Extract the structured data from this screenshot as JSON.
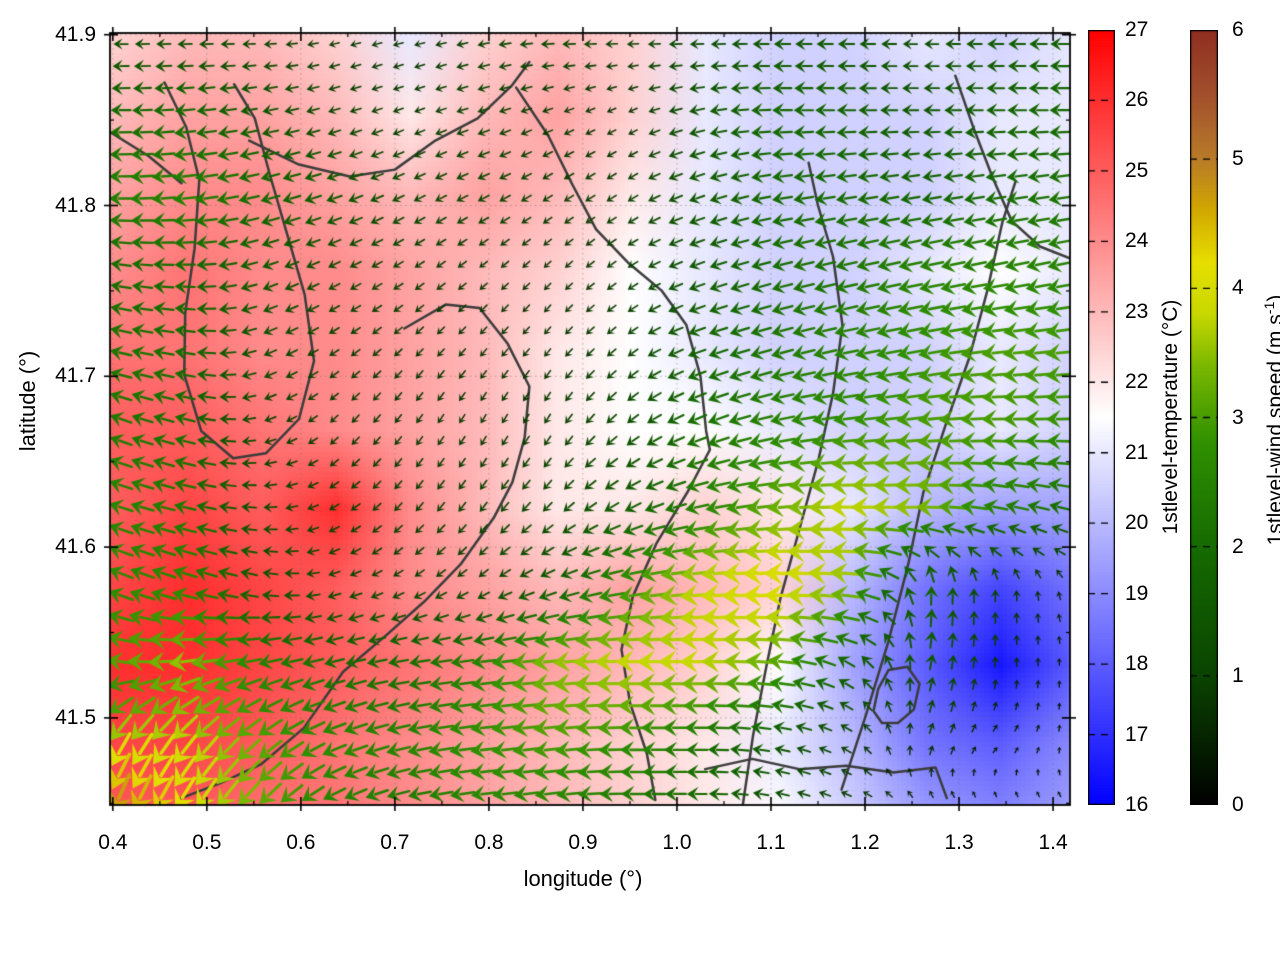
{
  "figure": {
    "background": "#ffffff"
  },
  "chart_data": {
    "type": "heatmap",
    "title": "",
    "xlabel": "longitude (°)",
    "ylabel": "latitude (°)",
    "xlim": [
      0.397,
      1.418
    ],
    "ylim": [
      41.449,
      41.901
    ],
    "xticks": [
      "0.4",
      "0.5",
      "0.6",
      "0.7",
      "0.8",
      "0.9",
      "1.0",
      "1.1",
      "1.2",
      "1.3",
      "1.4"
    ],
    "yticks": [
      "41.5",
      "41.6",
      "41.7",
      "41.8",
      "41.9"
    ],
    "grid_on": true,
    "grid": {
      "lon": [
        0.4,
        0.478,
        0.557,
        0.635,
        0.714,
        0.792,
        0.871,
        0.949,
        1.028,
        1.106,
        1.185,
        1.263,
        1.342,
        1.42
      ],
      "lat": [
        41.9,
        41.854,
        41.808,
        41.762,
        41.716,
        41.67,
        41.624,
        41.578,
        41.532,
        41.486,
        41.44
      ]
    },
    "temperature": [
      [
        22.5,
        23,
        23,
        22.5,
        21,
        22.5,
        23,
        22.5,
        21,
        20.5,
        20.5,
        21,
        20.5,
        21
      ],
      [
        23,
        23.5,
        23.5,
        23,
        22,
        23,
        23.5,
        22.5,
        21,
        20.5,
        20.5,
        20.5,
        21,
        21
      ],
      [
        23.5,
        24,
        24,
        23.5,
        23,
        23.5,
        23,
        22,
        21,
        20.5,
        20.5,
        20.5,
        21,
        21
      ],
      [
        24,
        24.5,
        24,
        24,
        23.5,
        23,
        22.5,
        21.5,
        21,
        20.5,
        20.5,
        21,
        21.5,
        21
      ],
      [
        24.5,
        24.5,
        24,
        24,
        23.5,
        23,
        22,
        21.5,
        21,
        20.5,
        20.5,
        20.5,
        21,
        20.5
      ],
      [
        25,
        25,
        24.5,
        24,
        23.5,
        23,
        22,
        21.5,
        21.5,
        21,
        20.5,
        20.5,
        21,
        20.5
      ],
      [
        25,
        25.5,
        25,
        26,
        24,
        23,
        22,
        22,
        22.5,
        22,
        21,
        20,
        19.5,
        19.5
      ],
      [
        25.5,
        26,
        25.5,
        25,
        24,
        23.5,
        23,
        23.5,
        23,
        22.5,
        20,
        18.5,
        17.5,
        18.5
      ],
      [
        26,
        26,
        25.5,
        25,
        24.5,
        24,
        23.5,
        23,
        22.5,
        21.5,
        19.5,
        18,
        16.5,
        18
      ],
      [
        25.5,
        25.5,
        25,
        24.5,
        24,
        23.5,
        23,
        22.5,
        22,
        21,
        20,
        18.5,
        18,
        19
      ],
      [
        25,
        25,
        24.5,
        24.5,
        24,
        23.5,
        23,
        22.5,
        22,
        21.5,
        20.5,
        19.5,
        19,
        19.5
      ]
    ],
    "wind_u": [
      [
        -1.2,
        -1.2,
        -1,
        -0.8,
        -0.8,
        -1,
        -1.2,
        -1,
        -1.2,
        -1.5,
        -1.5,
        -1.2,
        -1.5,
        -1.8
      ],
      [
        -2,
        -2,
        -1.5,
        -1,
        -0.8,
        -1,
        -0.8,
        -0.6,
        -1.5,
        -2,
        -1.8,
        -1.5,
        -1.8,
        -2
      ],
      [
        -2.5,
        -2.5,
        -2,
        -1.5,
        -1,
        -1,
        -0.8,
        -0.8,
        -1.5,
        -2,
        -2,
        -1.8,
        -2,
        -2.2
      ],
      [
        -2,
        -2,
        -1.5,
        -1,
        -0.8,
        -0.6,
        -0.5,
        -0.8,
        -1.5,
        -2,
        -2.2,
        -2.5,
        -2.5,
        -2.5
      ],
      [
        -2.2,
        -2,
        -1.2,
        -0.8,
        -0.6,
        -0.5,
        -0.5,
        -0.8,
        -1.8,
        -2.2,
        -2.5,
        -2.8,
        -3,
        -3
      ],
      [
        -2.2,
        -2,
        -1,
        -0.6,
        -0.5,
        -0.4,
        -0.5,
        -1,
        -2,
        -2.5,
        -2.8,
        -3,
        -3,
        -2.8
      ],
      [
        -2.5,
        -2.2,
        -1.2,
        -0.8,
        -0.6,
        -0.6,
        -0.8,
        -1.5,
        -2.5,
        -3.2,
        -3.8,
        -3.5,
        -2.5,
        -2
      ],
      [
        -2.5,
        -2.5,
        -1.5,
        -1,
        -0.8,
        -0.8,
        -1.5,
        -2.8,
        -3.8,
        -4.2,
        -3.5,
        0,
        0,
        -0.2
      ],
      [
        -3,
        -3.5,
        -2.5,
        -2,
        -2,
        -2.5,
        -3.5,
        -3.8,
        -3.8,
        -3.2,
        -1.5,
        0.3,
        0,
        0
      ],
      [
        -2,
        -2.5,
        -2.5,
        -2.5,
        -2.5,
        -2.8,
        -3,
        -2.8,
        -2.2,
        -1.5,
        -0.8,
        0.3,
        0.3,
        0
      ],
      [
        -1.8,
        -2,
        -2.2,
        -2.2,
        -2.2,
        -2.5,
        -2.5,
        -2.2,
        -1.8,
        -1.2,
        -0.8,
        -0.5,
        -0.3,
        -0.2
      ]
    ],
    "wind_v": [
      [
        0,
        0,
        0,
        -0.2,
        -0.2,
        -0.2,
        0,
        0,
        0,
        0,
        0,
        0,
        0,
        0
      ],
      [
        0,
        -0.2,
        -0.3,
        -0.3,
        -0.3,
        -0.3,
        -0.3,
        -0.3,
        -0.3,
        0,
        0,
        0,
        0,
        0
      ],
      [
        0,
        -0.3,
        -0.5,
        -0.5,
        -0.5,
        -0.5,
        -0.5,
        -0.5,
        -0.5,
        -0.3,
        -0.3,
        -0.3,
        -0.3,
        -0.3
      ],
      [
        0.3,
        0,
        -0.5,
        -0.5,
        -0.5,
        -0.5,
        -0.5,
        -0.5,
        -0.5,
        -0.5,
        -0.5,
        -0.5,
        -0.5,
        -0.5
      ],
      [
        0.5,
        0.3,
        -0.5,
        -0.5,
        -0.6,
        -0.6,
        -0.6,
        -0.6,
        -0.6,
        -0.6,
        -0.5,
        -0.5,
        -0.3,
        -0.3
      ],
      [
        0.8,
        0.5,
        -0.3,
        -0.6,
        -0.7,
        -0.7,
        -0.8,
        -0.8,
        -0.8,
        -0.5,
        -0.3,
        -0.3,
        0,
        0
      ],
      [
        0.8,
        0.5,
        0,
        -0.5,
        -0.7,
        -0.8,
        -0.8,
        -0.8,
        -0.5,
        -0.3,
        0,
        0,
        0.5,
        0.5
      ],
      [
        1,
        0.8,
        0.3,
        -0.3,
        -0.5,
        -0.6,
        -0.6,
        -0.5,
        -0.3,
        0,
        0.3,
        2,
        1,
        0.5
      ],
      [
        0.5,
        -0.5,
        -0.5,
        -0.5,
        -0.3,
        -0.3,
        -0.3,
        0,
        0,
        0.3,
        1,
        1.5,
        0.8,
        0.3
      ],
      [
        -3.5,
        -3,
        -2,
        -1,
        -0.5,
        -0.3,
        -0.3,
        0,
        0,
        0.3,
        0.5,
        0.8,
        0.3,
        0.3
      ],
      [
        -4.8,
        -3.8,
        -2.5,
        -1.2,
        -0.5,
        -0.3,
        -0.3,
        0,
        0,
        0.3,
        0.3,
        0.3,
        0.2,
        0.2
      ]
    ],
    "contours": [
      [
        [
          0.455,
          41.872
        ],
        [
          0.478,
          41.846
        ],
        [
          0.492,
          41.815
        ],
        [
          0.487,
          41.775
        ],
        [
          0.477,
          41.737
        ],
        [
          0.476,
          41.701
        ],
        [
          0.494,
          41.668
        ],
        [
          0.528,
          41.652
        ],
        [
          0.563,
          41.655
        ],
        [
          0.598,
          41.675
        ],
        [
          0.614,
          41.709
        ],
        [
          0.604,
          41.748
        ],
        [
          0.585,
          41.784
        ],
        [
          0.567,
          41.818
        ],
        [
          0.551,
          41.851
        ],
        [
          0.529,
          41.871
        ]
      ],
      [
        [
          0.397,
          41.843
        ],
        [
          0.438,
          41.829
        ],
        [
          0.473,
          41.813
        ]
      ],
      [
        [
          0.545,
          41.838
        ],
        [
          0.598,
          41.824
        ],
        [
          0.652,
          41.817
        ],
        [
          0.7,
          41.821
        ],
        [
          0.743,
          41.838
        ],
        [
          0.788,
          41.851
        ],
        [
          0.824,
          41.87
        ],
        [
          0.843,
          41.884
        ]
      ],
      [
        [
          0.829,
          41.869
        ],
        [
          0.863,
          41.841
        ],
        [
          0.889,
          41.812
        ],
        [
          0.914,
          41.786
        ],
        [
          0.949,
          41.766
        ],
        [
          0.984,
          41.75
        ],
        [
          1.01,
          41.73
        ],
        [
          1.025,
          41.7
        ],
        [
          1.031,
          41.668
        ],
        [
          1.035,
          41.657
        ],
        [
          1.012,
          41.633
        ],
        [
          0.978,
          41.602
        ],
        [
          0.953,
          41.571
        ],
        [
          0.941,
          41.54
        ],
        [
          0.95,
          41.509
        ],
        [
          0.968,
          41.479
        ],
        [
          0.977,
          41.452
        ]
      ],
      [
        [
          0.71,
          41.728
        ],
        [
          0.754,
          41.742
        ],
        [
          0.79,
          41.74
        ],
        [
          0.82,
          41.719
        ],
        [
          0.843,
          41.694
        ],
        [
          0.838,
          41.664
        ],
        [
          0.825,
          41.638
        ],
        [
          0.805,
          41.617
        ],
        [
          0.77,
          41.59
        ],
        [
          0.731,
          41.568
        ],
        [
          0.69,
          41.548
        ],
        [
          0.645,
          41.527
        ],
        [
          0.603,
          41.494
        ],
        [
          0.558,
          41.473
        ],
        [
          0.515,
          41.462
        ],
        [
          0.468,
          41.452
        ]
      ],
      [
        [
          1.07,
          41.449
        ],
        [
          1.081,
          41.49
        ],
        [
          1.095,
          41.53
        ],
        [
          1.11,
          41.57
        ],
        [
          1.13,
          41.61
        ],
        [
          1.15,
          41.65
        ],
        [
          1.166,
          41.69
        ],
        [
          1.176,
          41.73
        ],
        [
          1.166,
          41.77
        ],
        [
          1.15,
          41.8
        ],
        [
          1.14,
          41.825
        ]
      ],
      [
        [
          1.175,
          41.458
        ],
        [
          1.2,
          41.5
        ],
        [
          1.225,
          41.545
        ],
        [
          1.246,
          41.59
        ],
        [
          1.262,
          41.632
        ],
        [
          1.286,
          41.672
        ],
        [
          1.311,
          41.711
        ],
        [
          1.33,
          41.75
        ],
        [
          1.346,
          41.79
        ],
        [
          1.36,
          41.814
        ]
      ],
      [
        [
          1.296,
          41.876
        ],
        [
          1.315,
          41.846
        ],
        [
          1.336,
          41.816
        ],
        [
          1.356,
          41.791
        ],
        [
          1.386,
          41.776
        ],
        [
          1.418,
          41.769
        ]
      ],
      [
        [
          1.03,
          41.47
        ],
        [
          1.08,
          41.476
        ],
        [
          1.13,
          41.47
        ],
        [
          1.18,
          41.472
        ],
        [
          1.23,
          41.468
        ],
        [
          1.275,
          41.471
        ],
        [
          1.287,
          41.453
        ]
      ],
      [
        [
          1.225,
          41.528
        ],
        [
          1.245,
          41.53
        ],
        [
          1.258,
          41.52
        ],
        [
          1.252,
          41.505
        ],
        [
          1.235,
          41.497
        ],
        [
          1.218,
          41.497
        ],
        [
          1.209,
          41.504
        ],
        [
          1.214,
          41.517
        ],
        [
          1.225,
          41.528
        ]
      ]
    ],
    "contour_color": "#3c3c3c",
    "temp_colorbar": {
      "label": "1stlevel-temperature (°C)",
      "min": 16,
      "max": 27,
      "ticks": [
        "16",
        "17",
        "18",
        "19",
        "20",
        "21",
        "22",
        "23",
        "24",
        "25",
        "26",
        "27"
      ],
      "color_low": "#0000ff",
      "color_mid": "#ffffff",
      "color_high": "#ff0000"
    },
    "wind_colorbar": {
      "label_main": "1stlevel-wind speed (m s",
      "label_sup": "-1",
      "label_close": ")",
      "min": 0,
      "max": 6,
      "ticks": [
        "0",
        "1",
        "2",
        "3",
        "4",
        "5",
        "6"
      ],
      "stops": [
        [
          0,
          "#000000"
        ],
        [
          1,
          "#0a4400"
        ],
        [
          2,
          "#156b00"
        ],
        [
          2.8,
          "#2f9000"
        ],
        [
          3.4,
          "#7ab800"
        ],
        [
          3.8,
          "#c8d800"
        ],
        [
          4.2,
          "#e6df00"
        ],
        [
          4.6,
          "#d2a800"
        ],
        [
          5,
          "#b87b28"
        ],
        [
          5.5,
          "#a24f2c"
        ],
        [
          6,
          "#8f2e20"
        ]
      ]
    },
    "arrow_grid": {
      "cols": 45,
      "rows": 35
    }
  }
}
